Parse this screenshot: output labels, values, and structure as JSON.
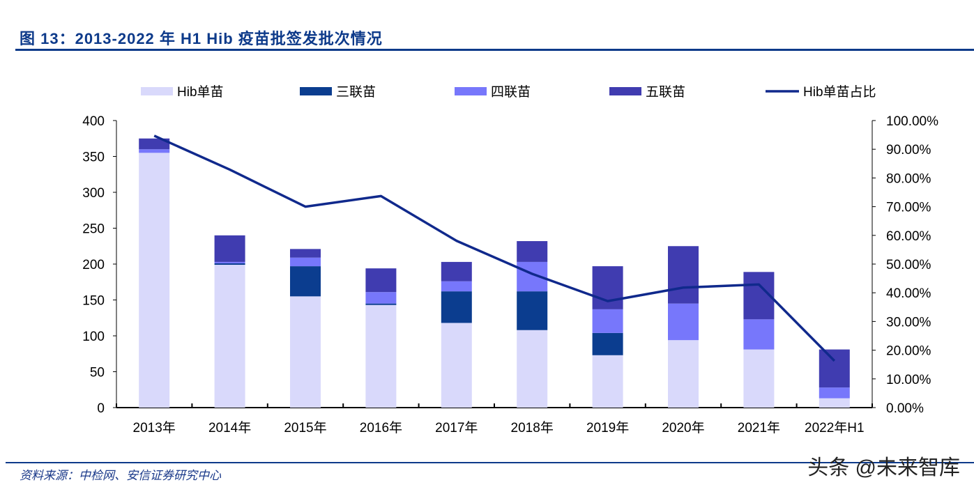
{
  "title": "图 13：2013-2022 年 H1  Hib 疫苗批签发批次情况",
  "source": "资料来源：中检网、安信证券研究中心",
  "watermark": "头条 @未来智库",
  "chart_data": {
    "type": "bar",
    "stacked": true,
    "categories": [
      "2013年",
      "2014年",
      "2015年",
      "2016年",
      "2017年",
      "2018年",
      "2019年",
      "2020年",
      "2021年",
      "2022年H1"
    ],
    "series": [
      {
        "name": "Hib单苗",
        "type": "bar",
        "color": "#d9d9fb",
        "values": [
          355,
          199,
          155,
          143,
          118,
          108,
          73,
          94,
          81,
          13
        ]
      },
      {
        "name": "三联苗",
        "type": "bar",
        "color": "#0b3d8f",
        "values": [
          0,
          2,
          42,
          2,
          44,
          54,
          31,
          0,
          0,
          0
        ]
      },
      {
        "name": "四联苗",
        "type": "bar",
        "color": "#7777fb",
        "values": [
          5,
          2,
          12,
          16,
          14,
          41,
          33,
          51,
          42,
          15
        ]
      },
      {
        "name": "五联苗",
        "type": "bar",
        "color": "#403cb0",
        "values": [
          15,
          37,
          12,
          33,
          27,
          29,
          60,
          80,
          66,
          53
        ]
      },
      {
        "name": "Hib单苗占比",
        "type": "line",
        "axis": "right",
        "color": "#10298c",
        "values": [
          94.7,
          82.9,
          70.0,
          73.7,
          58.1,
          46.6,
          37.1,
          41.8,
          42.9,
          16.3
        ]
      }
    ],
    "y_left": {
      "range": [
        0,
        400
      ],
      "ticks": [
        "0",
        "50",
        "100",
        "150",
        "200",
        "250",
        "300",
        "350",
        "400"
      ]
    },
    "y_right": {
      "range": [
        0,
        100
      ],
      "ticks": [
        "0.00%",
        "10.00%",
        "20.00%",
        "30.00%",
        "40.00%",
        "50.00%",
        "60.00%",
        "70.00%",
        "80.00%",
        "90.00%",
        "100.00%"
      ]
    },
    "grid": false,
    "legend": "top"
  }
}
